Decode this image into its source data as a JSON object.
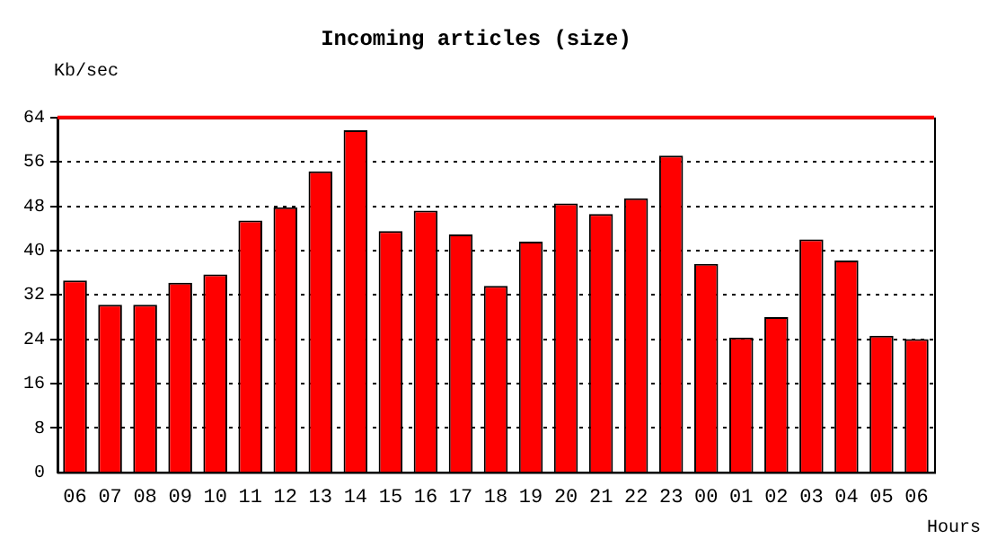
{
  "chart_data": {
    "type": "bar",
    "title": "Incoming articles (size)",
    "xlabel": "Hours",
    "ylabel": "Kb/sec",
    "categories": [
      "06",
      "07",
      "08",
      "09",
      "10",
      "11",
      "12",
      "13",
      "14",
      "15",
      "16",
      "17",
      "18",
      "19",
      "20",
      "21",
      "22",
      "23",
      "00",
      "01",
      "02",
      "03",
      "04",
      "05",
      "06"
    ],
    "values": [
      34.6,
      30.2,
      30.2,
      34.2,
      35.7,
      45.4,
      47.8,
      54.3,
      61.7,
      43.5,
      47.2,
      42.9,
      33.6,
      41.6,
      48.5,
      46.6,
      49.4,
      57.1,
      37.6,
      24.3,
      28.0,
      42.0,
      38.2,
      24.6,
      24.0
    ],
    "color": "#ff0000",
    "ylim": [
      0,
      64
    ],
    "yticks": [
      0,
      8,
      16,
      24,
      32,
      40,
      48,
      56,
      64
    ],
    "grid": "y",
    "line_style": "dotted",
    "ref_lines": [
      {
        "axis": "y",
        "value": 64,
        "color": "#ff0000"
      }
    ]
  }
}
